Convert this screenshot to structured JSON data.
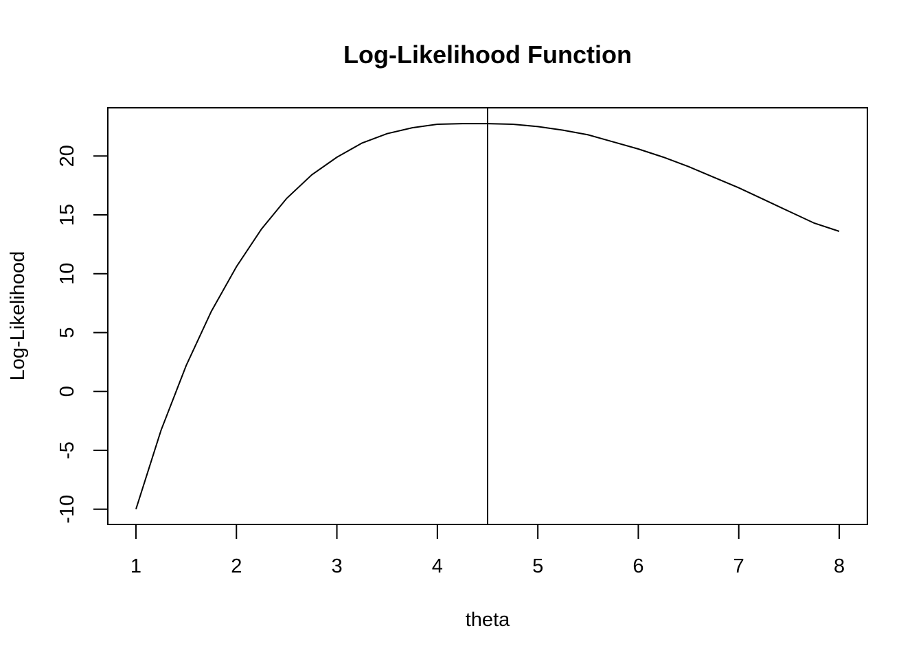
{
  "chart_data": {
    "type": "line",
    "title": "Log-Likelihood Function",
    "xlabel": "theta",
    "ylabel": "Log-Likelihood",
    "xlim": [
      0.72,
      8.28
    ],
    "ylim": [
      -11.3,
      24.1
    ],
    "x_ticks": [
      1,
      2,
      3,
      4,
      5,
      6,
      7,
      8
    ],
    "y_ticks": [
      -10,
      -5,
      0,
      5,
      10,
      15,
      20
    ],
    "series": [
      {
        "x": [
          1.0,
          1.25,
          1.5,
          1.75,
          2.0,
          2.25,
          2.5,
          2.75,
          3.0,
          3.25,
          3.5,
          3.75,
          4.0,
          4.25,
          4.5,
          4.75,
          5.0,
          5.25,
          5.5,
          5.75,
          6.0,
          6.25,
          6.5,
          6.75,
          7.0,
          7.25,
          7.5,
          7.75,
          8.0
        ],
        "y": [
          -10.0,
          -3.3,
          2.2,
          6.8,
          10.6,
          13.8,
          16.4,
          18.4,
          19.9,
          21.1,
          21.9,
          22.4,
          22.7,
          22.75,
          22.75,
          22.7,
          22.5,
          22.2,
          21.8,
          21.2,
          20.6,
          19.9,
          19.1,
          18.2,
          17.3,
          16.3,
          15.3,
          14.3,
          13.6
        ]
      }
    ],
    "vline_x": 4.5,
    "grid": false
  }
}
